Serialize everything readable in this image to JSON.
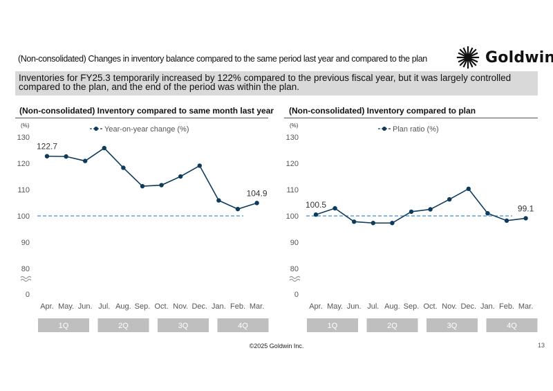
{
  "header": {
    "title": "(Non-consolidated) Changes in inventory balance compared to the same period last year and compared to the plan",
    "logo_text": "Goldwin"
  },
  "summary": "Inventories for FY25.3 temporarily increased by 122% compared to the previous fiscal year, but it was largely controlled compared to the plan, and the end of the period was within the plan.",
  "colors": {
    "series": "#0d3b5c",
    "reference": "#3a8fd6",
    "quarter_box": "#bfbfbf"
  },
  "chart_data": [
    {
      "type": "line",
      "title": "(Non-consolidated)  Inventory compared to same month last year",
      "unit_label": "(%)",
      "categories": [
        "Apr.",
        "May.",
        "Jun.",
        "Jul.",
        "Aug.",
        "Sep.",
        "Oct.",
        "Nov.",
        "Dec.",
        "Jan.",
        "Feb.",
        "Mar."
      ],
      "series": [
        {
          "name": "Year-on-year change (%)",
          "values": [
            122.7,
            122.6,
            120.9,
            125.8,
            118.3,
            111.3,
            111.7,
            115.0,
            119.1,
            105.9,
            102.6,
            104.9
          ]
        }
      ],
      "data_labels": [
        {
          "index": 0,
          "text": "122.7"
        },
        {
          "index": 11,
          "text": "104.9"
        }
      ],
      "reference_line": 100,
      "y_ticks": [
        "130",
        "120",
        "110",
        "100",
        "90",
        "80",
        "0"
      ],
      "ylim": [
        80,
        130
      ],
      "axis_break": true,
      "quarters": [
        "1Q",
        "2Q",
        "3Q",
        "4Q"
      ],
      "legend": "top-center",
      "grid": false
    },
    {
      "type": "line",
      "title": "(Non-consolidated)  Inventory compared to plan",
      "unit_label": "(%)",
      "categories": [
        "Apr.",
        "May.",
        "Jun.",
        "Jul.",
        "Aug.",
        "Sep.",
        "Oct.",
        "Nov.",
        "Dec.",
        "Jan.",
        "Feb.",
        "Mar."
      ],
      "series": [
        {
          "name": "Plan ratio (%)",
          "values": [
            100.5,
            102.9,
            97.8,
            97.3,
            97.3,
            101.6,
            102.5,
            106.3,
            110.3,
            101.0,
            98.2,
            99.1
          ]
        }
      ],
      "data_labels": [
        {
          "index": 0,
          "text": "100.5"
        },
        {
          "index": 11,
          "text": "99.1"
        }
      ],
      "reference_line": 100,
      "y_ticks": [
        "130",
        "120",
        "110",
        "100",
        "90",
        "80",
        "0"
      ],
      "ylim": [
        80,
        130
      ],
      "axis_break": true,
      "quarters": [
        "1Q",
        "2Q",
        "3Q",
        "4Q"
      ],
      "legend": "top-center",
      "grid": false
    }
  ],
  "footer": {
    "copyright": "©2025 Goldwin Inc.",
    "page_number": "13"
  }
}
